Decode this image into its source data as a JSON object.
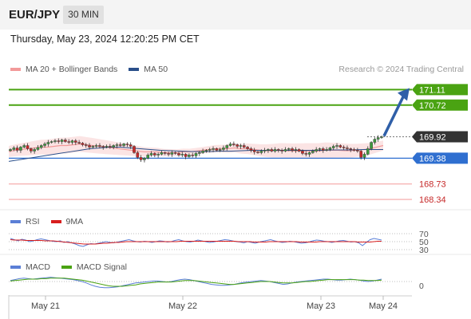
{
  "header": {
    "symbol": "EUR/JPY",
    "timeframe": "30 MIN",
    "datetime": "Thursday, May 23, 2024 12:20:25 PM CET"
  },
  "legend_main": [
    {
      "label": "MA 20 + Bollinger Bands",
      "color": "#f29a9a"
    },
    {
      "label": "MA 50",
      "color": "#2a4f8a"
    }
  ],
  "credit": "Research © 2024 Trading Central",
  "legend_rsi": [
    {
      "label": "RSI",
      "color": "#5b7fd6"
    },
    {
      "label": "9MA",
      "color": "#d81e1e"
    }
  ],
  "legend_macd": [
    {
      "label": "MACD",
      "color": "#5b7fd6"
    },
    {
      "label": "MACD Signal",
      "color": "#4aa312"
    }
  ],
  "colors": {
    "candle_up": "#3d9a3d",
    "candle_down": "#c62828",
    "bollinger_fill": "#fbe4e4",
    "ma20": "#f29a9a",
    "ma50": "#2a4f8a",
    "target_line": "#4aa312",
    "pivot_line": "#2f6fd0",
    "support_line": "#f4a4a4",
    "support_text": "#c62828",
    "current_label": "#333333",
    "arrow": "#2f5fa8"
  },
  "chart_data": {
    "type": "candlestick",
    "x_tick_labels": [
      "May 21",
      "May 22",
      "May 23",
      "May 24"
    ],
    "y_range": [
      168.1,
      171.4
    ],
    "levels": [
      {
        "label": "171.11",
        "value": 171.11,
        "kind": "target"
      },
      {
        "label": "170.72",
        "value": 170.72,
        "kind": "target"
      },
      {
        "label": "169.92",
        "value": 169.92,
        "kind": "current"
      },
      {
        "label": "169.38",
        "value": 169.38,
        "kind": "pivot"
      },
      {
        "label": "168.73",
        "value": 168.73,
        "kind": "support"
      },
      {
        "label": "168.34",
        "value": 168.34,
        "kind": "support"
      }
    ],
    "close_series": [
      169.6,
      169.64,
      169.58,
      169.66,
      169.7,
      169.62,
      169.56,
      169.6,
      169.65,
      169.7,
      169.74,
      169.78,
      169.8,
      169.82,
      169.8,
      169.84,
      169.8,
      169.78,
      169.82,
      169.78,
      169.76,
      169.72,
      169.7,
      169.66,
      169.68,
      169.7,
      169.68,
      169.66,
      169.68,
      169.66,
      169.7,
      169.72,
      169.7,
      169.74,
      169.72,
      169.68,
      169.52,
      169.4,
      169.34,
      169.38,
      169.46,
      169.5,
      169.46,
      169.48,
      169.52,
      169.5,
      169.48,
      169.52,
      169.5,
      169.46,
      169.48,
      169.42,
      169.46,
      169.44,
      169.5,
      169.52,
      169.56,
      169.58,
      169.6,
      169.62,
      169.58,
      169.6,
      169.64,
      169.7,
      169.74,
      169.72,
      169.68,
      169.7,
      169.66,
      169.62,
      169.58,
      169.54,
      169.52,
      169.56,
      169.58,
      169.6,
      169.56,
      169.6,
      169.58,
      169.56,
      169.6,
      169.62,
      169.58,
      169.6,
      169.56,
      169.5,
      169.48,
      169.52,
      169.56,
      169.6,
      169.62,
      169.58,
      169.6,
      169.64,
      169.68,
      169.7,
      169.66,
      169.64,
      169.62,
      169.6,
      169.58,
      169.56,
      169.4,
      169.48,
      169.62,
      169.78,
      169.86,
      169.9,
      169.92
    ],
    "ma20": [
      169.55,
      169.58,
      169.6,
      169.62,
      169.64,
      169.66,
      169.66,
      169.68,
      169.7,
      169.7,
      169.72,
      169.74,
      169.72,
      169.7,
      169.68,
      169.66,
      169.64,
      169.62,
      169.6,
      169.58,
      169.56,
      169.54,
      169.54,
      169.54,
      169.52,
      169.52,
      169.52,
      169.54,
      169.54,
      169.56,
      169.58,
      169.6,
      169.62,
      169.62,
      169.62,
      169.64,
      169.62,
      169.62,
      169.6,
      169.58,
      169.57,
      169.57,
      169.58,
      169.57,
      169.56,
      169.56,
      169.56,
      169.56,
      169.56,
      169.58,
      169.58,
      169.58,
      169.57,
      169.57,
      169.58,
      169.6,
      169.62,
      169.66,
      169.7
    ],
    "ma50": [
      169.3,
      169.34,
      169.38,
      169.42,
      169.46,
      169.5,
      169.54,
      169.58,
      169.62,
      169.64,
      169.66,
      169.66,
      169.64,
      169.62,
      169.6,
      169.58,
      169.57,
      169.56,
      169.55,
      169.55,
      169.55,
      169.56,
      169.56,
      169.57,
      169.58,
      169.58,
      169.58,
      169.58,
      169.58,
      169.58,
      169.58,
      169.58,
      169.59,
      169.59,
      169.59,
      169.6,
      169.6,
      169.6
    ],
    "rsi": {
      "levels": [
        70,
        50,
        30
      ],
      "values": [
        58,
        55,
        52,
        56,
        54,
        50,
        52,
        55,
        57,
        55,
        53,
        51,
        50,
        52,
        48,
        50,
        47,
        44,
        40,
        38,
        42,
        45,
        44,
        46,
        48,
        50,
        48,
        47,
        49,
        51,
        53,
        55,
        52,
        50,
        49,
        51,
        50,
        48,
        50,
        52,
        51,
        49,
        50,
        53,
        55,
        52,
        50,
        49,
        51,
        54,
        52,
        50,
        48,
        49,
        51,
        53,
        55,
        54,
        52,
        50,
        49,
        47,
        50,
        48,
        46,
        49,
        51,
        53,
        55,
        52,
        50,
        48,
        49,
        51,
        50,
        48,
        46,
        47,
        49,
        52,
        54,
        53,
        51,
        50,
        48,
        50,
        52,
        53,
        51,
        49,
        50,
        47,
        40,
        48,
        55,
        58,
        56,
        54
      ]
    },
    "rsi_ma": [
      55,
      54,
      54,
      54,
      53,
      53,
      53,
      53,
      53,
      52,
      52,
      52,
      51,
      50,
      49,
      48,
      47,
      46,
      45,
      44,
      44,
      44,
      44,
      45,
      46,
      46,
      47,
      48,
      48,
      49,
      50,
      50,
      50,
      50,
      50,
      50,
      50,
      50,
      50,
      50,
      50,
      50,
      50,
      50,
      51,
      51,
      51,
      51,
      51,
      51,
      51,
      51,
      51,
      51,
      51,
      51,
      51,
      51,
      51,
      50,
      50,
      50,
      50,
      49,
      49,
      49,
      49,
      50,
      50,
      50,
      50,
      50,
      50,
      50,
      50,
      49,
      49,
      49,
      49,
      49,
      50,
      50,
      50,
      50,
      50,
      50,
      50,
      50,
      50,
      50,
      49,
      49,
      49,
      49,
      50,
      51,
      51
    ],
    "macd": {
      "zero_label": "0",
      "values": [
        0.02,
        0.04,
        0.06,
        0.07,
        0.06,
        0.05,
        0.06,
        0.07,
        0.08,
        0.09,
        0.08,
        0.07,
        0.06,
        0.05,
        0.04,
        0.02,
        0.0,
        -0.03,
        -0.07,
        -0.1,
        -0.12,
        -0.13,
        -0.13,
        -0.12,
        -0.11,
        -0.09,
        -0.07,
        -0.05,
        -0.03,
        -0.02,
        -0.01,
        0.0,
        0.01,
        0.01,
        0.0,
        -0.01,
        0.0,
        0.02,
        0.04,
        0.05,
        0.04,
        0.02,
        0.0,
        -0.02,
        -0.04,
        -0.06,
        -0.07,
        -0.08,
        -0.08,
        -0.07,
        -0.06,
        -0.04,
        -0.02,
        -0.01,
        0.0,
        0.01,
        0.02,
        0.01,
        0.0,
        -0.02,
        -0.04,
        -0.06,
        -0.05,
        -0.03,
        -0.01,
        0.0,
        0.01,
        0.02,
        0.03,
        0.04,
        0.05,
        0.05,
        0.04,
        0.03,
        0.03,
        0.04,
        0.05,
        0.04,
        0.03,
        0.01,
        0.0,
        0.01,
        0.03,
        0.05
      ]
    },
    "macd_signal": [
      0.01,
      0.02,
      0.03,
      0.04,
      0.05,
      0.05,
      0.05,
      0.06,
      0.06,
      0.07,
      0.07,
      0.07,
      0.07,
      0.06,
      0.05,
      0.04,
      0.03,
      0.01,
      -0.01,
      -0.03,
      -0.05,
      -0.07,
      -0.09,
      -0.1,
      -0.1,
      -0.1,
      -0.09,
      -0.08,
      -0.07,
      -0.05,
      -0.04,
      -0.03,
      -0.02,
      -0.01,
      -0.01,
      -0.01,
      -0.01,
      0.0,
      0.01,
      0.02,
      0.02,
      0.02,
      0.01,
      0.0,
      -0.01,
      -0.02,
      -0.03,
      -0.04,
      -0.05,
      -0.06,
      -0.06,
      -0.05,
      -0.04,
      -0.03,
      -0.02,
      -0.01,
      0.0,
      0.0,
      0.0,
      -0.01,
      -0.02,
      -0.03,
      -0.03,
      -0.03,
      -0.02,
      -0.01,
      0.0,
      0.0,
      0.01,
      0.02,
      0.03,
      0.04,
      0.04,
      0.04,
      0.04,
      0.04,
      0.04,
      0.04,
      0.03,
      0.03,
      0.02,
      0.02,
      0.02,
      0.03
    ]
  }
}
